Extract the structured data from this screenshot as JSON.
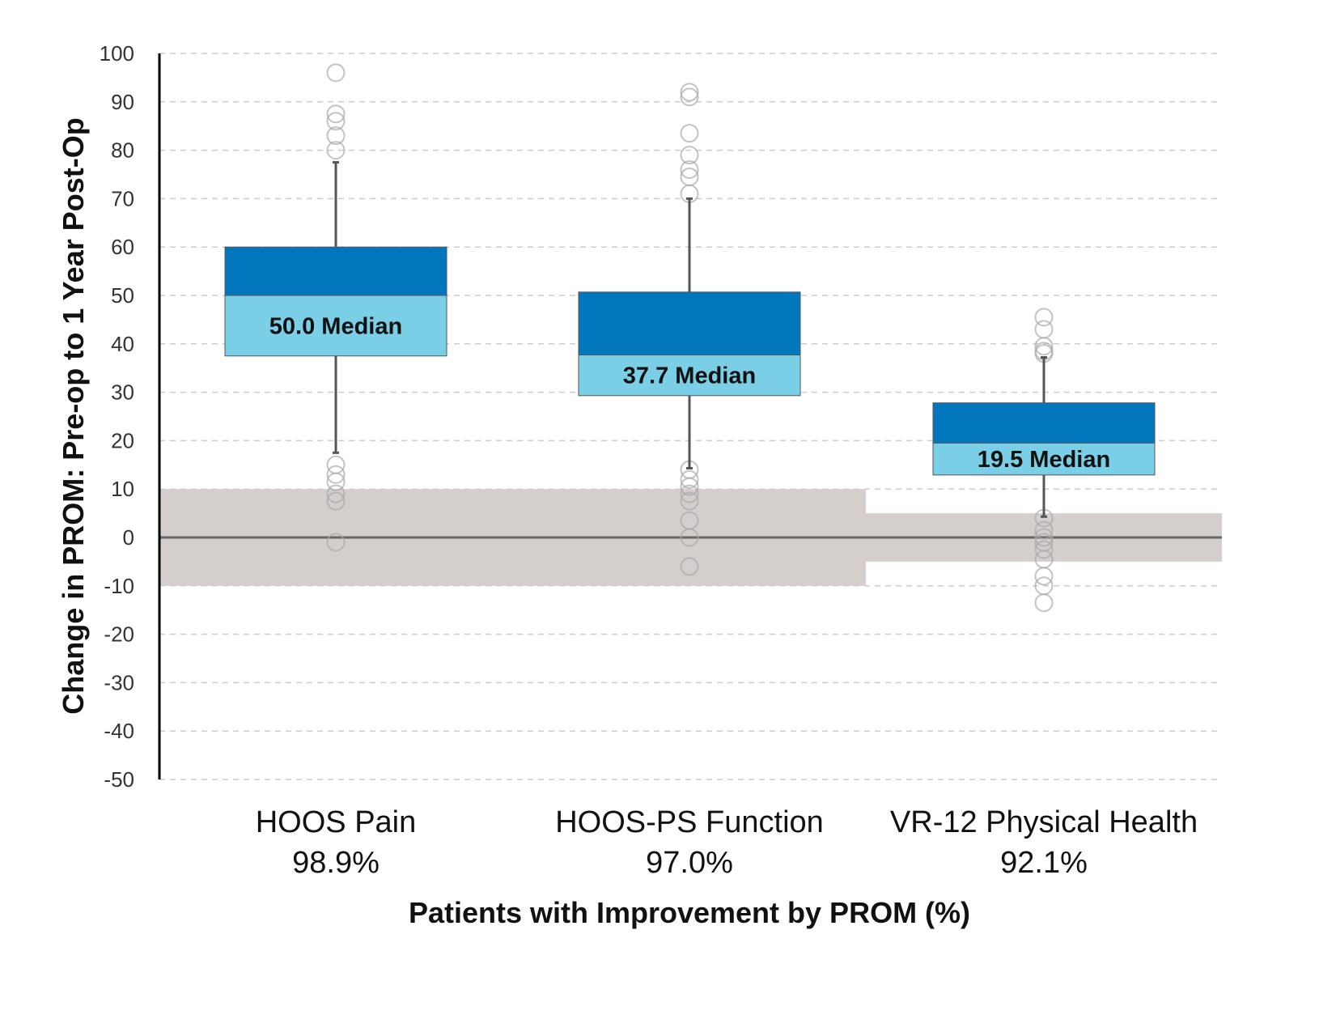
{
  "chart_data": {
    "type": "box",
    "title": "",
    "xlabel": "Patients with Improvement by PROM (%)",
    "ylabel": "Change in PROM: Pre-op to 1 Year Post-Op",
    "ylim": [
      -50,
      100
    ],
    "yticks": [
      100,
      90,
      80,
      70,
      60,
      50,
      40,
      30,
      20,
      10,
      0,
      -10,
      -20,
      -30,
      -40,
      -50
    ],
    "grid": "dashed horizontal",
    "colors": {
      "upper_box": "#0277BD",
      "lower_box": "#7ACFE6",
      "mcid_band": "#D4CECC",
      "whisker": "#555555",
      "zero_line": "#666666",
      "outlier": "#AAAAAA",
      "grid": "#CCCCCC"
    },
    "categories": [
      {
        "label": "HOOS Pain",
        "percent": "98.9%",
        "median": 50.0,
        "median_label": "50.0 Median",
        "q1": 37.5,
        "q3": 60.0,
        "whisker_low": 17.5,
        "whisker_high": 77.5,
        "mcid_band": [
          -10,
          10
        ],
        "outliers": [
          96,
          87.5,
          86,
          83,
          80,
          15,
          13,
          11.5,
          9,
          7.5,
          -1
        ]
      },
      {
        "label": "HOOS-PS Function",
        "percent": "97.0%",
        "median": 37.7,
        "median_label": "37.7 Median",
        "q1": 29.3,
        "q3": 50.7,
        "whisker_low": 14.3,
        "whisker_high": 70.0,
        "mcid_band": [
          -10,
          10
        ],
        "outliers": [
          92,
          91,
          83.5,
          79,
          76,
          74.5,
          71,
          14,
          12,
          10.5,
          9,
          7.5,
          3.5,
          0,
          -6
        ]
      },
      {
        "label": "VR-12 Physical Health",
        "percent": "92.1%",
        "median": 19.5,
        "median_label": "19.5 Median",
        "q1": 12.9,
        "q3": 27.8,
        "whisker_low": 4.3,
        "whisker_high": 37.2,
        "mcid_band": [
          -5,
          5
        ],
        "outliers": [
          45.5,
          43,
          39.5,
          38.5,
          38,
          4,
          1.5,
          0,
          -1,
          -2.5,
          -4.5,
          -8,
          -10,
          -13.5
        ]
      }
    ]
  }
}
